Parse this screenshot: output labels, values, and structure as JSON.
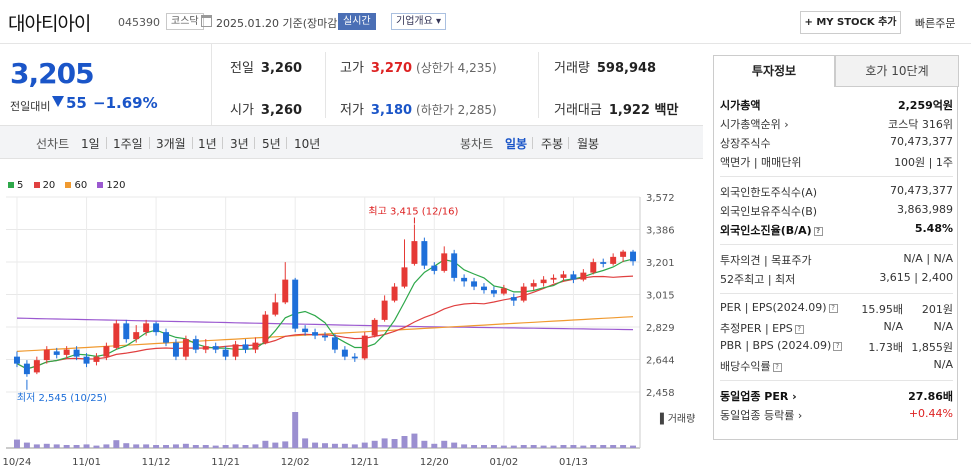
{
  "header": {
    "name": "대아티아이",
    "code": "045390",
    "market": "코스닥",
    "date": "2025.01.20  기준(장마감)",
    "live_badge": "실시간",
    "corp_badge": "기업개요 ▾",
    "mystock_label": "+ MY STOCK 추가",
    "quick_order": "빠른주문"
  },
  "price": {
    "current": "3,205",
    "change_label": "전일대비",
    "change": "55",
    "change_pct": "−1.69%",
    "direction": "down"
  },
  "quote": {
    "prev_label": "전일",
    "prev": "3,260",
    "open_label": "시가",
    "open": "3,260",
    "high_label": "고가",
    "high": "3,270",
    "upper_limit": "(상한가 4,235)",
    "low_label": "저가",
    "low": "3,180",
    "lower_limit": "(하한가 2,285)",
    "volume_label": "거래량",
    "volume": "598,948",
    "amount_label": "거래대금",
    "amount": "1,922 백만"
  },
  "period_tabs": {
    "line_label": "선차트",
    "line_items": [
      "1일",
      "1주일",
      "3개월",
      "1년",
      "3년",
      "5년",
      "10년"
    ],
    "candle_label": "봉차트",
    "candle_items": [
      "일봉",
      "주봉",
      "월봉"
    ],
    "active": "일봉"
  },
  "chart_data": {
    "type": "candlestick",
    "legend": [
      {
        "name": "5",
        "color": "#2ea84a"
      },
      {
        "name": "20",
        "color": "#e04040"
      },
      {
        "name": "60",
        "color": "#f09a30"
      },
      {
        "name": "120",
        "color": "#9b59d0"
      }
    ],
    "y_ticks": [
      "3,572",
      "3,386",
      "3,201",
      "3,015",
      "2,829",
      "2,644",
      "2,458"
    ],
    "y_range": [
      2458,
      3572
    ],
    "x_ticks": [
      "10/24",
      "11/01",
      "11/12",
      "11/21",
      "12/02",
      "12/11",
      "12/20",
      "01/02",
      "01/13"
    ],
    "max_label": "최고 3,415 (12/16)",
    "min_label": "최저 2,545 (10/25)",
    "volume_label": "거래량",
    "candles": [
      [
        2660,
        2620,
        2690,
        2600
      ],
      [
        2620,
        2560,
        2640,
        2545
      ],
      [
        2570,
        2640,
        2660,
        2560
      ],
      [
        2640,
        2700,
        2720,
        2620
      ],
      [
        2690,
        2670,
        2710,
        2650
      ],
      [
        2670,
        2700,
        2720,
        2650
      ],
      [
        2700,
        2660,
        2720,
        2640
      ],
      [
        2660,
        2620,
        2680,
        2600
      ],
      [
        2630,
        2660,
        2680,
        2610
      ],
      [
        2660,
        2720,
        2740,
        2640
      ],
      [
        2710,
        2850,
        2870,
        2700
      ],
      [
        2850,
        2760,
        2870,
        2740
      ],
      [
        2760,
        2800,
        2840,
        2740
      ],
      [
        2800,
        2850,
        2870,
        2780
      ],
      [
        2850,
        2800,
        2860,
        2780
      ],
      [
        2800,
        2740,
        2820,
        2720
      ],
      [
        2740,
        2660,
        2760,
        2640
      ],
      [
        2660,
        2760,
        2780,
        2640
      ],
      [
        2760,
        2700,
        2780,
        2680
      ],
      [
        2700,
        2720,
        2760,
        2680
      ],
      [
        2720,
        2700,
        2740,
        2680
      ],
      [
        2700,
        2660,
        2720,
        2640
      ],
      [
        2660,
        2730,
        2750,
        2640
      ],
      [
        2730,
        2700,
        2760,
        2680
      ],
      [
        2700,
        2740,
        2770,
        2680
      ],
      [
        2740,
        2900,
        2920,
        2730
      ],
      [
        2900,
        2970,
        3020,
        2890
      ],
      [
        2970,
        3100,
        3200,
        2960
      ],
      [
        3100,
        2820,
        3110,
        2800
      ],
      [
        2820,
        2800,
        2840,
        2780
      ],
      [
        2800,
        2780,
        2820,
        2760
      ],
      [
        2780,
        2770,
        2800,
        2750
      ],
      [
        2770,
        2700,
        2790,
        2680
      ],
      [
        2700,
        2660,
        2720,
        2640
      ],
      [
        2660,
        2650,
        2680,
        2630
      ],
      [
        2650,
        2780,
        2800,
        2640
      ],
      [
        2780,
        2870,
        2880,
        2770
      ],
      [
        2870,
        2980,
        3010,
        2860
      ],
      [
        2980,
        3060,
        3080,
        2970
      ],
      [
        3060,
        3170,
        3330,
        3050
      ],
      [
        3190,
        3320,
        3415,
        3180
      ],
      [
        3320,
        3180,
        3340,
        3160
      ],
      [
        3180,
        3150,
        3200,
        3130
      ],
      [
        3150,
        3250,
        3290,
        3140
      ],
      [
        3250,
        3110,
        3270,
        3090
      ],
      [
        3110,
        3090,
        3130,
        3060
      ],
      [
        3090,
        3060,
        3110,
        3040
      ],
      [
        3060,
        3040,
        3080,
        3020
      ],
      [
        3040,
        3020,
        3060,
        3000
      ],
      [
        3020,
        3050,
        3070,
        3010
      ],
      [
        3000,
        2980,
        3020,
        2950
      ],
      [
        2980,
        3060,
        3080,
        2970
      ],
      [
        3060,
        3080,
        3100,
        3040
      ],
      [
        3080,
        3100,
        3120,
        3060
      ],
      [
        3100,
        3110,
        3130,
        3080
      ],
      [
        3110,
        3130,
        3150,
        3090
      ],
      [
        3130,
        3100,
        3150,
        3080
      ],
      [
        3100,
        3140,
        3160,
        3090
      ],
      [
        3140,
        3200,
        3220,
        3130
      ],
      [
        3200,
        3190,
        3220,
        3170
      ],
      [
        3190,
        3230,
        3250,
        3180
      ],
      [
        3230,
        3260,
        3270,
        3200
      ],
      [
        3260,
        3205,
        3270,
        3180
      ]
    ],
    "volumes": [
      14,
      9,
      6,
      7,
      6,
      5,
      5,
      6,
      4,
      6,
      13,
      8,
      6,
      6,
      5,
      5,
      6,
      7,
      5,
      5,
      4,
      5,
      6,
      5,
      6,
      12,
      9,
      11,
      60,
      16,
      9,
      8,
      7,
      7,
      6,
      9,
      12,
      16,
      15,
      20,
      24,
      12,
      7,
      12,
      9,
      6,
      5,
      5,
      5,
      4,
      4,
      5,
      5,
      4,
      4,
      5,
      5,
      4,
      5,
      5,
      5,
      5,
      4
    ]
  },
  "right_panel": {
    "tab1": "투자정보",
    "tab2": "호가 10단계",
    "rows1": [
      {
        "k": "시가총액",
        "v": "2,259억원",
        "bold": true
      },
      {
        "k": "시가총액순위 ›",
        "v": "코스닥 316위"
      },
      {
        "k": "상장주식수",
        "v": "70,473,377"
      },
      {
        "k": "액면가 | 매매단위",
        "v": "100원 | 1주"
      }
    ],
    "rows2": [
      {
        "k": "외국인한도주식수(A)",
        "v": "70,473,377"
      },
      {
        "k": "외국인보유주식수(B)",
        "v": "3,863,989"
      },
      {
        "k": "외국인소진율(B/A)",
        "v": "5.48%",
        "bold": true,
        "q": "?"
      }
    ],
    "rows3": [
      {
        "k": "투자의견 | 목표주가",
        "v": "N/A | N/A"
      },
      {
        "k": "52주최고 | 최저",
        "v": "3,615 | 2,400"
      }
    ],
    "rows4": [
      {
        "k": "PER | EPS(2024.09)",
        "mid": "15.95배",
        "v": "201원",
        "q": "?"
      },
      {
        "k": "추정PER | EPS",
        "mid": "N/A",
        "v": "N/A",
        "q": "?"
      },
      {
        "k": "PBR | BPS (2024.09)",
        "mid": "1.73배",
        "v": "1,855원",
        "q": "?"
      },
      {
        "k": "배당수익률",
        "v": "N/A",
        "q": "?"
      }
    ],
    "rows5": [
      {
        "k": "동일업종 PER ›",
        "v": "27.86배",
        "bold": true
      },
      {
        "k": "동일업종 등락률 ›",
        "v": "+0.44%",
        "up": true
      }
    ]
  }
}
